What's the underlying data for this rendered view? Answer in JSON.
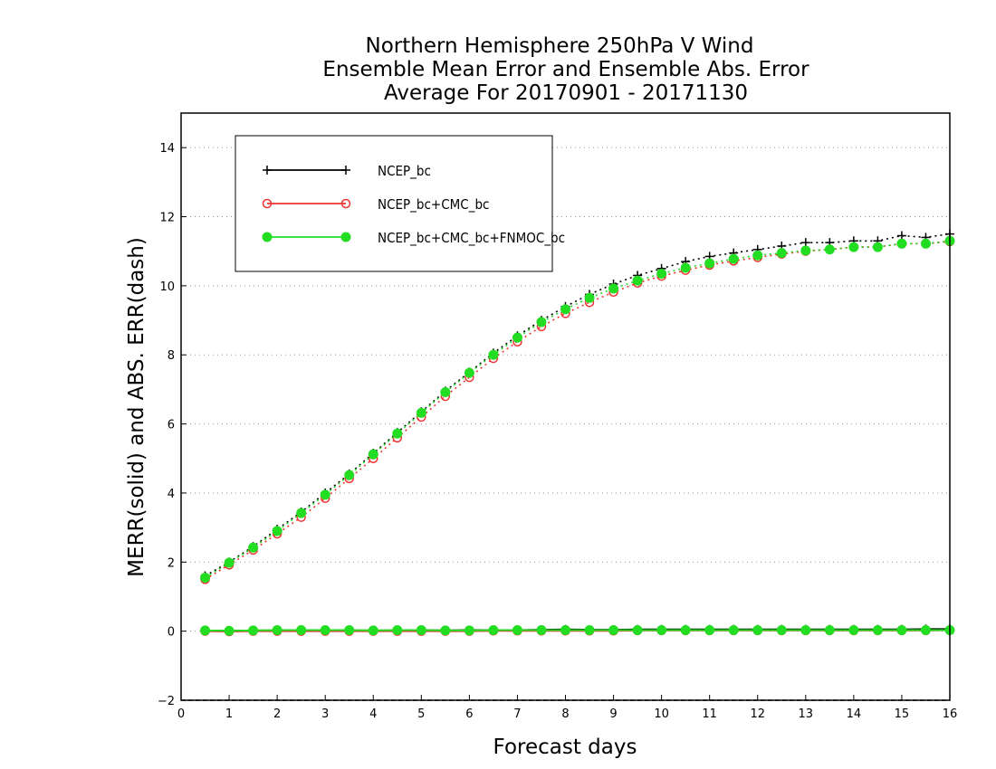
{
  "chart_data": {
    "type": "line",
    "title": [
      "Northern Hemisphere 250hPa V Wind",
      "Ensemble Mean Error and Ensemble Abs. Error",
      "Average For 20170901 - 20171130"
    ],
    "xlabel": "Forecast days",
    "ylabel": "MERR(solid) and ABS. ERR(dash)",
    "xlim": [
      0,
      16
    ],
    "ylim": [
      -2,
      15
    ],
    "xticks": [
      0,
      1,
      2,
      3,
      4,
      5,
      6,
      7,
      8,
      9,
      10,
      11,
      12,
      13,
      14,
      15,
      16
    ],
    "yticks": [
      -2,
      0,
      2,
      4,
      6,
      8,
      10,
      12,
      14
    ],
    "grid": "dotted horizontal",
    "legend_position": "top-left",
    "x": [
      0.5,
      1,
      1.5,
      2,
      2.5,
      3,
      3.5,
      4,
      4.5,
      5,
      5.5,
      6,
      6.5,
      7,
      7.5,
      8,
      8.5,
      9,
      9.5,
      10,
      10.5,
      11,
      11.5,
      12,
      12.5,
      13,
      13.5,
      14,
      14.5,
      15,
      15.5,
      16
    ],
    "series": [
      {
        "name": "NCEP_bc",
        "color": "#000000",
        "marker": "plus",
        "abs_error": [
          1.6,
          2.0,
          2.45,
          2.95,
          3.45,
          4.0,
          4.55,
          5.15,
          5.75,
          6.35,
          6.95,
          7.5,
          8.05,
          8.55,
          9.0,
          9.4,
          9.75,
          10.05,
          10.3,
          10.5,
          10.7,
          10.85,
          10.95,
          11.05,
          11.15,
          11.25,
          11.25,
          11.3,
          11.3,
          11.45,
          11.4,
          11.5
        ],
        "mean_error": [
          0.02,
          0.01,
          0.02,
          0.02,
          0.02,
          0.02,
          0.02,
          0.02,
          0.02,
          0.03,
          0.02,
          0.03,
          0.03,
          0.03,
          0.04,
          0.05,
          0.04,
          0.04,
          0.05,
          0.05,
          0.05,
          0.05,
          0.05,
          0.05,
          0.05,
          0.05,
          0.05,
          0.05,
          0.05,
          0.05,
          0.06,
          0.06
        ]
      },
      {
        "name": "NCEP_bc+CMC_bc",
        "color": "#ee3333",
        "marker": "open-circle",
        "abs_error": [
          1.5,
          1.92,
          2.35,
          2.82,
          3.3,
          3.85,
          4.42,
          5.0,
          5.6,
          6.2,
          6.8,
          7.35,
          7.9,
          8.38,
          8.82,
          9.2,
          9.52,
          9.82,
          10.08,
          10.28,
          10.45,
          10.6,
          10.72,
          10.82,
          10.92,
          11.0,
          11.05,
          11.12,
          11.12,
          11.22,
          11.22,
          11.28
        ],
        "mean_error": [
          0.0,
          -0.01,
          0.0,
          0.0,
          0.0,
          0.0,
          0.0,
          0.0,
          0.0,
          0.0,
          0.0,
          0.0,
          0.01,
          0.01,
          0.01,
          0.01,
          0.01,
          0.01,
          0.02,
          0.02,
          0.02,
          0.02,
          0.02,
          0.02,
          0.02,
          0.02,
          0.02,
          0.02,
          0.02,
          0.02,
          0.02,
          0.03
        ]
      },
      {
        "name": "NCEP_bc+CMC_bc+FNMOC_bc",
        "color": "#22dd22",
        "marker": "filled-circle",
        "abs_error": [
          1.55,
          1.98,
          2.42,
          2.9,
          3.42,
          3.95,
          4.52,
          5.12,
          5.72,
          6.32,
          6.92,
          7.48,
          8.0,
          8.5,
          8.95,
          9.32,
          9.65,
          9.92,
          10.15,
          10.35,
          10.52,
          10.65,
          10.78,
          10.88,
          10.95,
          11.02,
          11.05,
          11.12,
          11.12,
          11.22,
          11.22,
          11.3
        ],
        "mean_error": [
          0.02,
          0.01,
          0.02,
          0.03,
          0.03,
          0.03,
          0.03,
          0.02,
          0.03,
          0.03,
          0.02,
          0.02,
          0.03,
          0.03,
          0.03,
          0.03,
          0.03,
          0.03,
          0.03,
          0.03,
          0.03,
          0.03,
          0.03,
          0.03,
          0.03,
          0.03,
          0.03,
          0.03,
          0.03,
          0.03,
          0.03,
          0.03
        ]
      }
    ]
  }
}
